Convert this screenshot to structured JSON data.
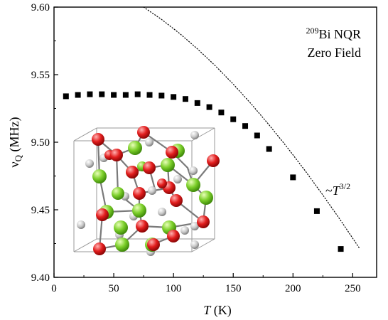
{
  "chart_data": {
    "type": "scatter",
    "xlabel": {
      "symbol": "T",
      "unit": " (K)"
    },
    "ylabel": {
      "symbol": "ν",
      "subscript": "Q",
      "unit": " (MHz)"
    },
    "xlim": [
      0,
      270
    ],
    "ylim": [
      9.4,
      9.6
    ],
    "xticks": [
      "0",
      "50",
      "100",
      "150",
      "200",
      "250"
    ],
    "xtick_values": [
      0,
      50,
      100,
      150,
      200,
      250
    ],
    "yticks": [
      "9.40",
      "9.45",
      "9.50",
      "9.55",
      "9.60"
    ],
    "ytick_values": [
      9.4,
      9.45,
      9.5,
      9.55,
      9.6
    ],
    "series": [
      {
        "marker": "square",
        "color": "#000000",
        "x": [
          10,
          20,
          30,
          40,
          50,
          60,
          70,
          80,
          90,
          100,
          110,
          120,
          130,
          140,
          150,
          160,
          170,
          180,
          200,
          220,
          240
        ],
        "y": [
          9.534,
          9.535,
          9.5355,
          9.5355,
          9.535,
          9.535,
          9.5355,
          9.535,
          9.5345,
          9.5335,
          9.532,
          9.529,
          9.526,
          9.522,
          9.517,
          9.512,
          9.505,
          9.495,
          9.474,
          9.449,
          9.421
        ]
      }
    ],
    "fit_curve": {
      "style": "dotted",
      "color": "#000000",
      "x": [
        75,
        90,
        105,
        120,
        135,
        150,
        165,
        180,
        195,
        210,
        225,
        240,
        256
      ],
      "y": [
        9.6,
        9.5909,
        9.5806,
        9.5691,
        9.5566,
        9.543,
        9.5284,
        9.5128,
        9.4964,
        9.4791,
        9.4609,
        9.442,
        9.421
      ]
    },
    "annotations": {
      "label_isotope": "209",
      "label_nucleus": "Bi NQR",
      "label_field": "Zero Field",
      "fit_prefix": "~",
      "fit_base": "T",
      "fit_exponent": "3/2"
    },
    "inset": {
      "description_icon": "crystal-structure-icon",
      "green_color": "#7ccf2a",
      "red_color": "#e21d1d",
      "grey_color": "#c8c8c8"
    }
  }
}
